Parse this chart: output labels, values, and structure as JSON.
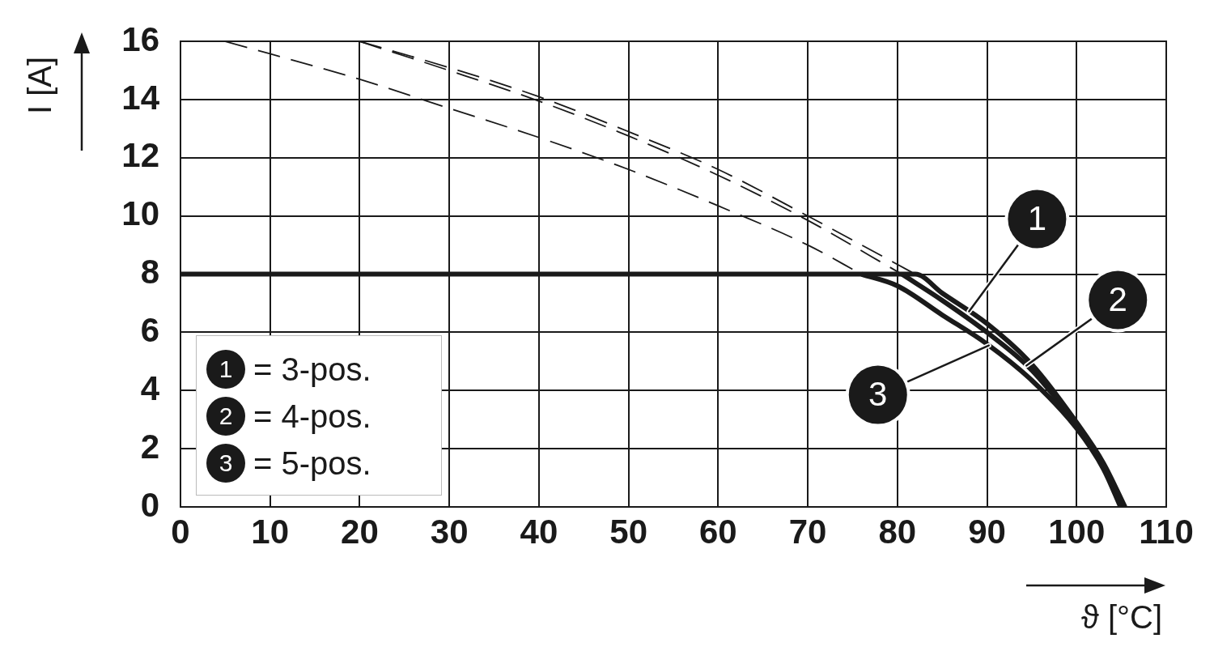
{
  "chart_data": {
    "type": "line",
    "xlabel": "ϑ [°C]",
    "ylabel": "I [A]",
    "xlim": [
      0,
      110
    ],
    "xticks": [
      0,
      10,
      20,
      30,
      40,
      50,
      60,
      70,
      80,
      90,
      100,
      110
    ],
    "ylim": [
      0,
      16
    ],
    "yticks": [
      0,
      2,
      4,
      6,
      8,
      10,
      12,
      14,
      16
    ],
    "grid": true,
    "legend": "bottom left",
    "marker": "none",
    "series": [
      {
        "name": "= 3-pos.",
        "color": "#1a1a1a",
        "line_style": "solid",
        "x": [
          0,
          82,
          85,
          90,
          95,
          100,
          103,
          105.4
        ],
        "values": [
          8,
          8,
          7.35,
          6.3,
          4.9,
          2.9,
          1.5,
          0
        ]
      },
      {
        "name": "= 4-pos.",
        "color": "#1a1a1a",
        "line_style": "solid",
        "x": [
          80.5,
          85,
          90,
          95,
          100,
          103,
          105
        ],
        "values": [
          8,
          7.1,
          6.0,
          4.7,
          2.8,
          1.45,
          0
        ]
      },
      {
        "name": "= 5-pos.",
        "color": "#1a1a1a",
        "line_style": "solid",
        "x": [
          76,
          80,
          85,
          90,
          95,
          100,
          103,
          104.9
        ],
        "values": [
          8,
          7.6,
          6.6,
          5.6,
          4.35,
          2.7,
          1.3,
          0
        ]
      },
      {
        "color": "#1a1a1a",
        "line_style": "dashed",
        "x": [
          20,
          30,
          40,
          50,
          60,
          70,
          82
        ],
        "values": [
          16,
          15.1,
          14.1,
          12.9,
          11.6,
          10.0,
          8
        ]
      },
      {
        "color": "#1a1a1a",
        "line_style": "dashed",
        "x": [
          20,
          30,
          40,
          50,
          60,
          70,
          80.5
        ],
        "values": [
          16,
          15.0,
          13.95,
          12.75,
          11.4,
          9.85,
          8
        ]
      },
      {
        "color": "#1a1a1a",
        "line_style": "dashed",
        "x": [
          5,
          20,
          30,
          40,
          50,
          60,
          70,
          76
        ],
        "values": [
          16,
          14.7,
          13.7,
          12.7,
          11.6,
          10.35,
          9.0,
          8
        ]
      }
    ],
    "annotations": [
      {
        "text": "1",
        "x": 88,
        "y": 6.72
      },
      {
        "text": "2",
        "x": 94.4,
        "y": 4.86
      },
      {
        "text": "3",
        "x": 90.2,
        "y": 5.55
      }
    ]
  }
}
